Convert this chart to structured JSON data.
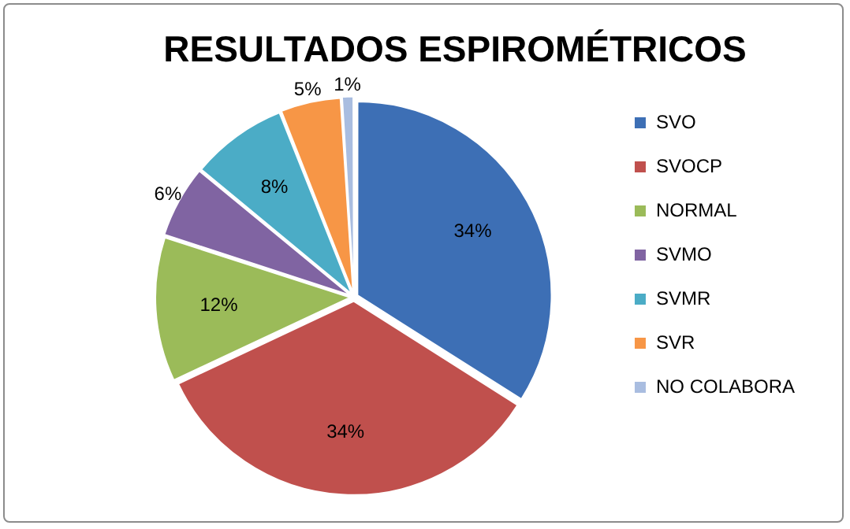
{
  "chart_data": {
    "type": "pie",
    "title": "RESULTADOS ESPIROMÉTRICOS",
    "categories": [
      "SVO",
      "SVOCP",
      "NORMAL",
      "SVMO",
      "SVMR",
      "SVR",
      "NO COLABORA"
    ],
    "values": [
      34,
      34,
      12,
      6,
      8,
      5,
      1
    ],
    "value_labels": [
      "34%",
      "34%",
      "12%",
      "6%",
      "8%",
      "5%",
      "1%"
    ],
    "colors": [
      "#3d6fb5",
      "#c0504d",
      "#9bbb59",
      "#8064a2",
      "#4bacc6",
      "#f79646",
      "#a9bde0"
    ],
    "legend": "right"
  }
}
